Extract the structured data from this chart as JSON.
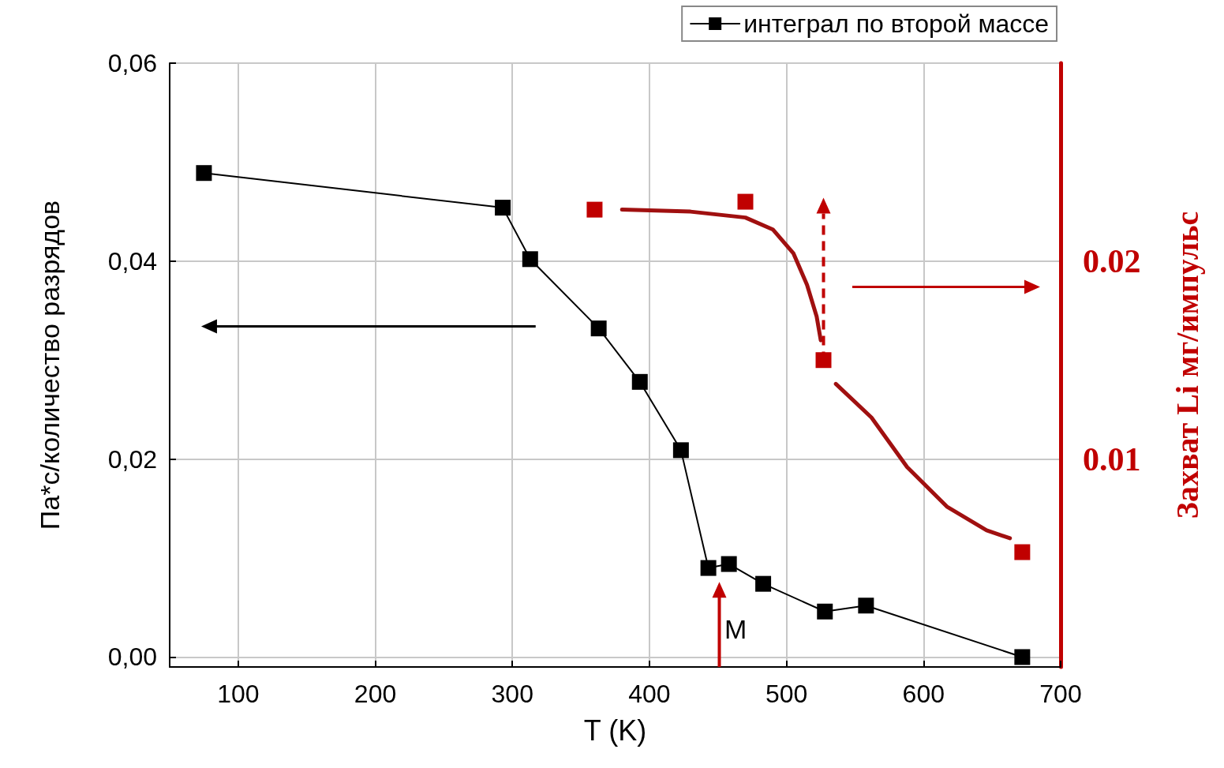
{
  "chart_data": {
    "type": "line",
    "xlabel": "T (K)",
    "ylabel": "Па*с/количество разрядов",
    "y2label": "Захват Li мг/импульс",
    "xlim": [
      50,
      700
    ],
    "xticks": [
      100,
      200,
      300,
      400,
      500,
      600,
      700
    ],
    "ylim": [
      -0.001,
      0.06
    ],
    "yticks": [
      {
        "value": 0,
        "label": "0,00"
      },
      {
        "value": 0.02,
        "label": "0,02"
      },
      {
        "value": 0.04,
        "label": "0,04"
      },
      {
        "value": 0.06,
        "label": "0,06"
      }
    ],
    "y2lim": [
      -0.0005,
      0.03
    ],
    "y2ticks": [
      0.01,
      0.02
    ],
    "grid": true,
    "legend": "top right",
    "marker": "square",
    "line_style": "solid",
    "annotations": [
      "М"
    ],
    "series": [
      {
        "name": "интеграл по второй массе",
        "color": "#000000",
        "x": [
          75,
          293,
          313,
          363,
          393,
          423,
          443,
          458,
          483,
          528,
          558,
          672
        ],
        "values": [
          0.0489,
          0.0454,
          0.0402,
          0.0332,
          0.0278,
          0.0209,
          0.009,
          0.0094,
          0.0074,
          0.0046,
          0.0052,
          0.0
        ]
      },
      {
        "type": "scatter",
        "axis": "y2",
        "color": "#c00000",
        "x": [
          360,
          470,
          527,
          672
        ],
        "values": [
          0.0226,
          0.023,
          0.015,
          0.0053
        ]
      },
      {
        "type": "line",
        "axis": "y2",
        "marker": "none",
        "color": "#a01010",
        "x": [
          380,
          430,
          470,
          490,
          505,
          515,
          522,
          525,
          530,
          536,
          562,
          588,
          617,
          646,
          663
        ],
        "values": [
          0.0226,
          0.0225,
          0.0222,
          0.0216,
          0.0204,
          0.0188,
          0.0172,
          0.016,
          null,
          0.0138,
          0.0121,
          0.0096,
          0.0076,
          0.0064,
          0.006
        ]
      }
    ]
  }
}
